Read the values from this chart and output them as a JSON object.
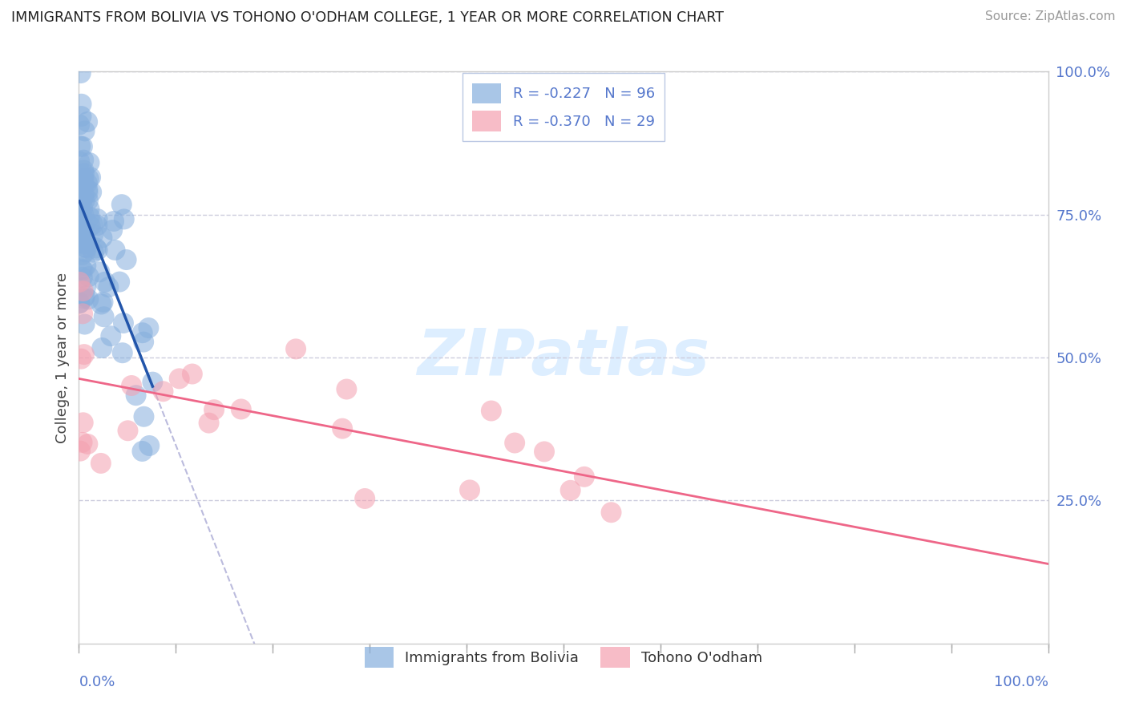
{
  "title": "IMMIGRANTS FROM BOLIVIA VS TOHONO O'ODHAM COLLEGE, 1 YEAR OR MORE CORRELATION CHART",
  "source": "Source: ZipAtlas.com",
  "ylabel": "College, 1 year or more",
  "legend_blue": {
    "R": -0.227,
    "N": 96,
    "label": "Immigrants from Bolivia"
  },
  "legend_pink": {
    "R": -0.37,
    "N": 29,
    "label": "Tohono O'odham"
  },
  "blue_color": "#85AEDD",
  "pink_color": "#F4A0B0",
  "blue_line_color": "#2255AA",
  "pink_line_color": "#EE6688",
  "dashed_line_color": "#BBBBDD",
  "background_color": "#FFFFFF",
  "grid_color": "#CCCCDD",
  "watermark_color": "#DDEEFF",
  "right_tick_color": "#5577CC",
  "title_color": "#222222",
  "source_color": "#999999",
  "ylabel_color": "#444444",
  "ylim": [
    0,
    100
  ],
  "xlim": [
    0,
    100
  ],
  "yticks_right": [
    25,
    50,
    75,
    100
  ],
  "figsize": [
    14.06,
    8.92
  ],
  "dpi": 100
}
